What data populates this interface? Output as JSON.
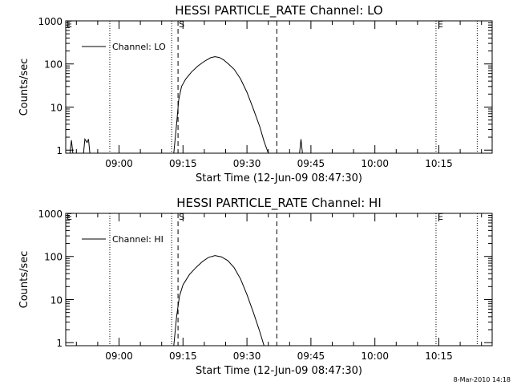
{
  "footer": {
    "timestamp": "8-Mar-2010 14:18"
  },
  "chart_data": [
    {
      "type": "line",
      "title": "HESSI PARTICLE_RATE Channel: LO",
      "xlabel": "Start Time (12-Jun-09 08:47:30)",
      "ylabel": "Counts/sec",
      "yscale": "log",
      "ylim": [
        0.85,
        1000
      ],
      "xlim": [
        "08:47:30",
        "10:27:30"
      ],
      "x_ticks": [
        "09:00",
        "09:15",
        "09:30",
        "09:45",
        "10:00",
        "10:15"
      ],
      "y_ticks": [
        "1",
        "10",
        "100",
        "1000"
      ],
      "legend": {
        "label": "Channel: LO",
        "position": "top-left"
      },
      "markers": {
        "start": "S",
        "end": "E"
      },
      "vlines": [
        {
          "time": "08:57:50",
          "style": "dotted"
        },
        {
          "time": "09:12:20",
          "style": "dotted"
        },
        {
          "time": "09:13:50",
          "style": "dashed"
        },
        {
          "time": "09:37:00",
          "style": "dashed"
        },
        {
          "time": "10:14:20",
          "style": "dotted"
        },
        {
          "time": "10:24:00",
          "style": "dotted"
        }
      ],
      "series": [
        {
          "name": "Channel: LO",
          "segments": [
            [
              [
                "08:48:30",
                0.85
              ],
              [
                "08:48:50",
                1.7
              ],
              [
                "08:49:10",
                0.85
              ]
            ],
            [
              [
                "08:51:40",
                0.85
              ],
              [
                "08:52:00",
                1.8
              ],
              [
                "08:52:30",
                1.5
              ],
              [
                "08:52:50",
                1.8
              ],
              [
                "08:53:10",
                0.85
              ]
            ],
            [
              [
                "09:12:50",
                0.85
              ],
              [
                "09:13:30",
                4
              ],
              [
                "09:14:00",
                15
              ],
              [
                "09:14:40",
                30
              ],
              [
                "09:15:40",
                45
              ],
              [
                "09:17:00",
                65
              ],
              [
                "09:18:30",
                90
              ],
              [
                "09:20:00",
                115
              ],
              [
                "09:21:30",
                140
              ],
              [
                "09:22:30",
                148
              ],
              [
                "09:23:30",
                142
              ],
              [
                "09:24:30",
                125
              ],
              [
                "09:25:40",
                100
              ],
              [
                "09:27:00",
                75
              ],
              [
                "09:28:30",
                45
              ],
              [
                "09:30:00",
                22
              ],
              [
                "09:31:30",
                9
              ],
              [
                "09:33:00",
                3.5
              ],
              [
                "09:34:00",
                1.6
              ],
              [
                "09:35:00",
                0.85
              ]
            ],
            [
              [
                "09:42:20",
                0.85
              ],
              [
                "09:42:40",
                1.8
              ],
              [
                "09:43:00",
                0.85
              ]
            ]
          ]
        }
      ]
    },
    {
      "type": "line",
      "title": "HESSI PARTICLE_RATE Channel: HI",
      "xlabel": "Start Time (12-Jun-09 08:47:30)",
      "ylabel": "Counts/sec",
      "yscale": "log",
      "ylim": [
        0.85,
        1000
      ],
      "xlim": [
        "08:47:30",
        "10:27:30"
      ],
      "x_ticks": [
        "09:00",
        "09:15",
        "09:30",
        "09:45",
        "10:00",
        "10:15"
      ],
      "y_ticks": [
        "1",
        "10",
        "100",
        "1000"
      ],
      "legend": {
        "label": "Channel: HI",
        "position": "top-left"
      },
      "markers": {
        "start": "S",
        "end": "E"
      },
      "vlines": [
        {
          "time": "08:57:50",
          "style": "dotted"
        },
        {
          "time": "09:12:20",
          "style": "dotted"
        },
        {
          "time": "09:13:50",
          "style": "dashed"
        },
        {
          "time": "09:37:00",
          "style": "dashed"
        },
        {
          "time": "10:14:20",
          "style": "dotted"
        },
        {
          "time": "10:24:00",
          "style": "dotted"
        }
      ],
      "series": [
        {
          "name": "Channel: HI",
          "segments": [
            [
              [
                "09:12:50",
                0.85
              ],
              [
                "09:13:30",
                4
              ],
              [
                "09:14:10",
                12
              ],
              [
                "09:15:00",
                22
              ],
              [
                "09:16:30",
                38
              ],
              [
                "09:18:00",
                55
              ],
              [
                "09:19:30",
                75
              ],
              [
                "09:21:00",
                95
              ],
              [
                "09:22:30",
                105
              ],
              [
                "09:24:00",
                98
              ],
              [
                "09:25:30",
                80
              ],
              [
                "09:27:00",
                55
              ],
              [
                "09:28:30",
                30
              ],
              [
                "09:30:00",
                13
              ],
              [
                "09:31:30",
                5
              ],
              [
                "09:33:00",
                1.8
              ],
              [
                "09:34:00",
                0.85
              ]
            ]
          ]
        }
      ]
    }
  ]
}
